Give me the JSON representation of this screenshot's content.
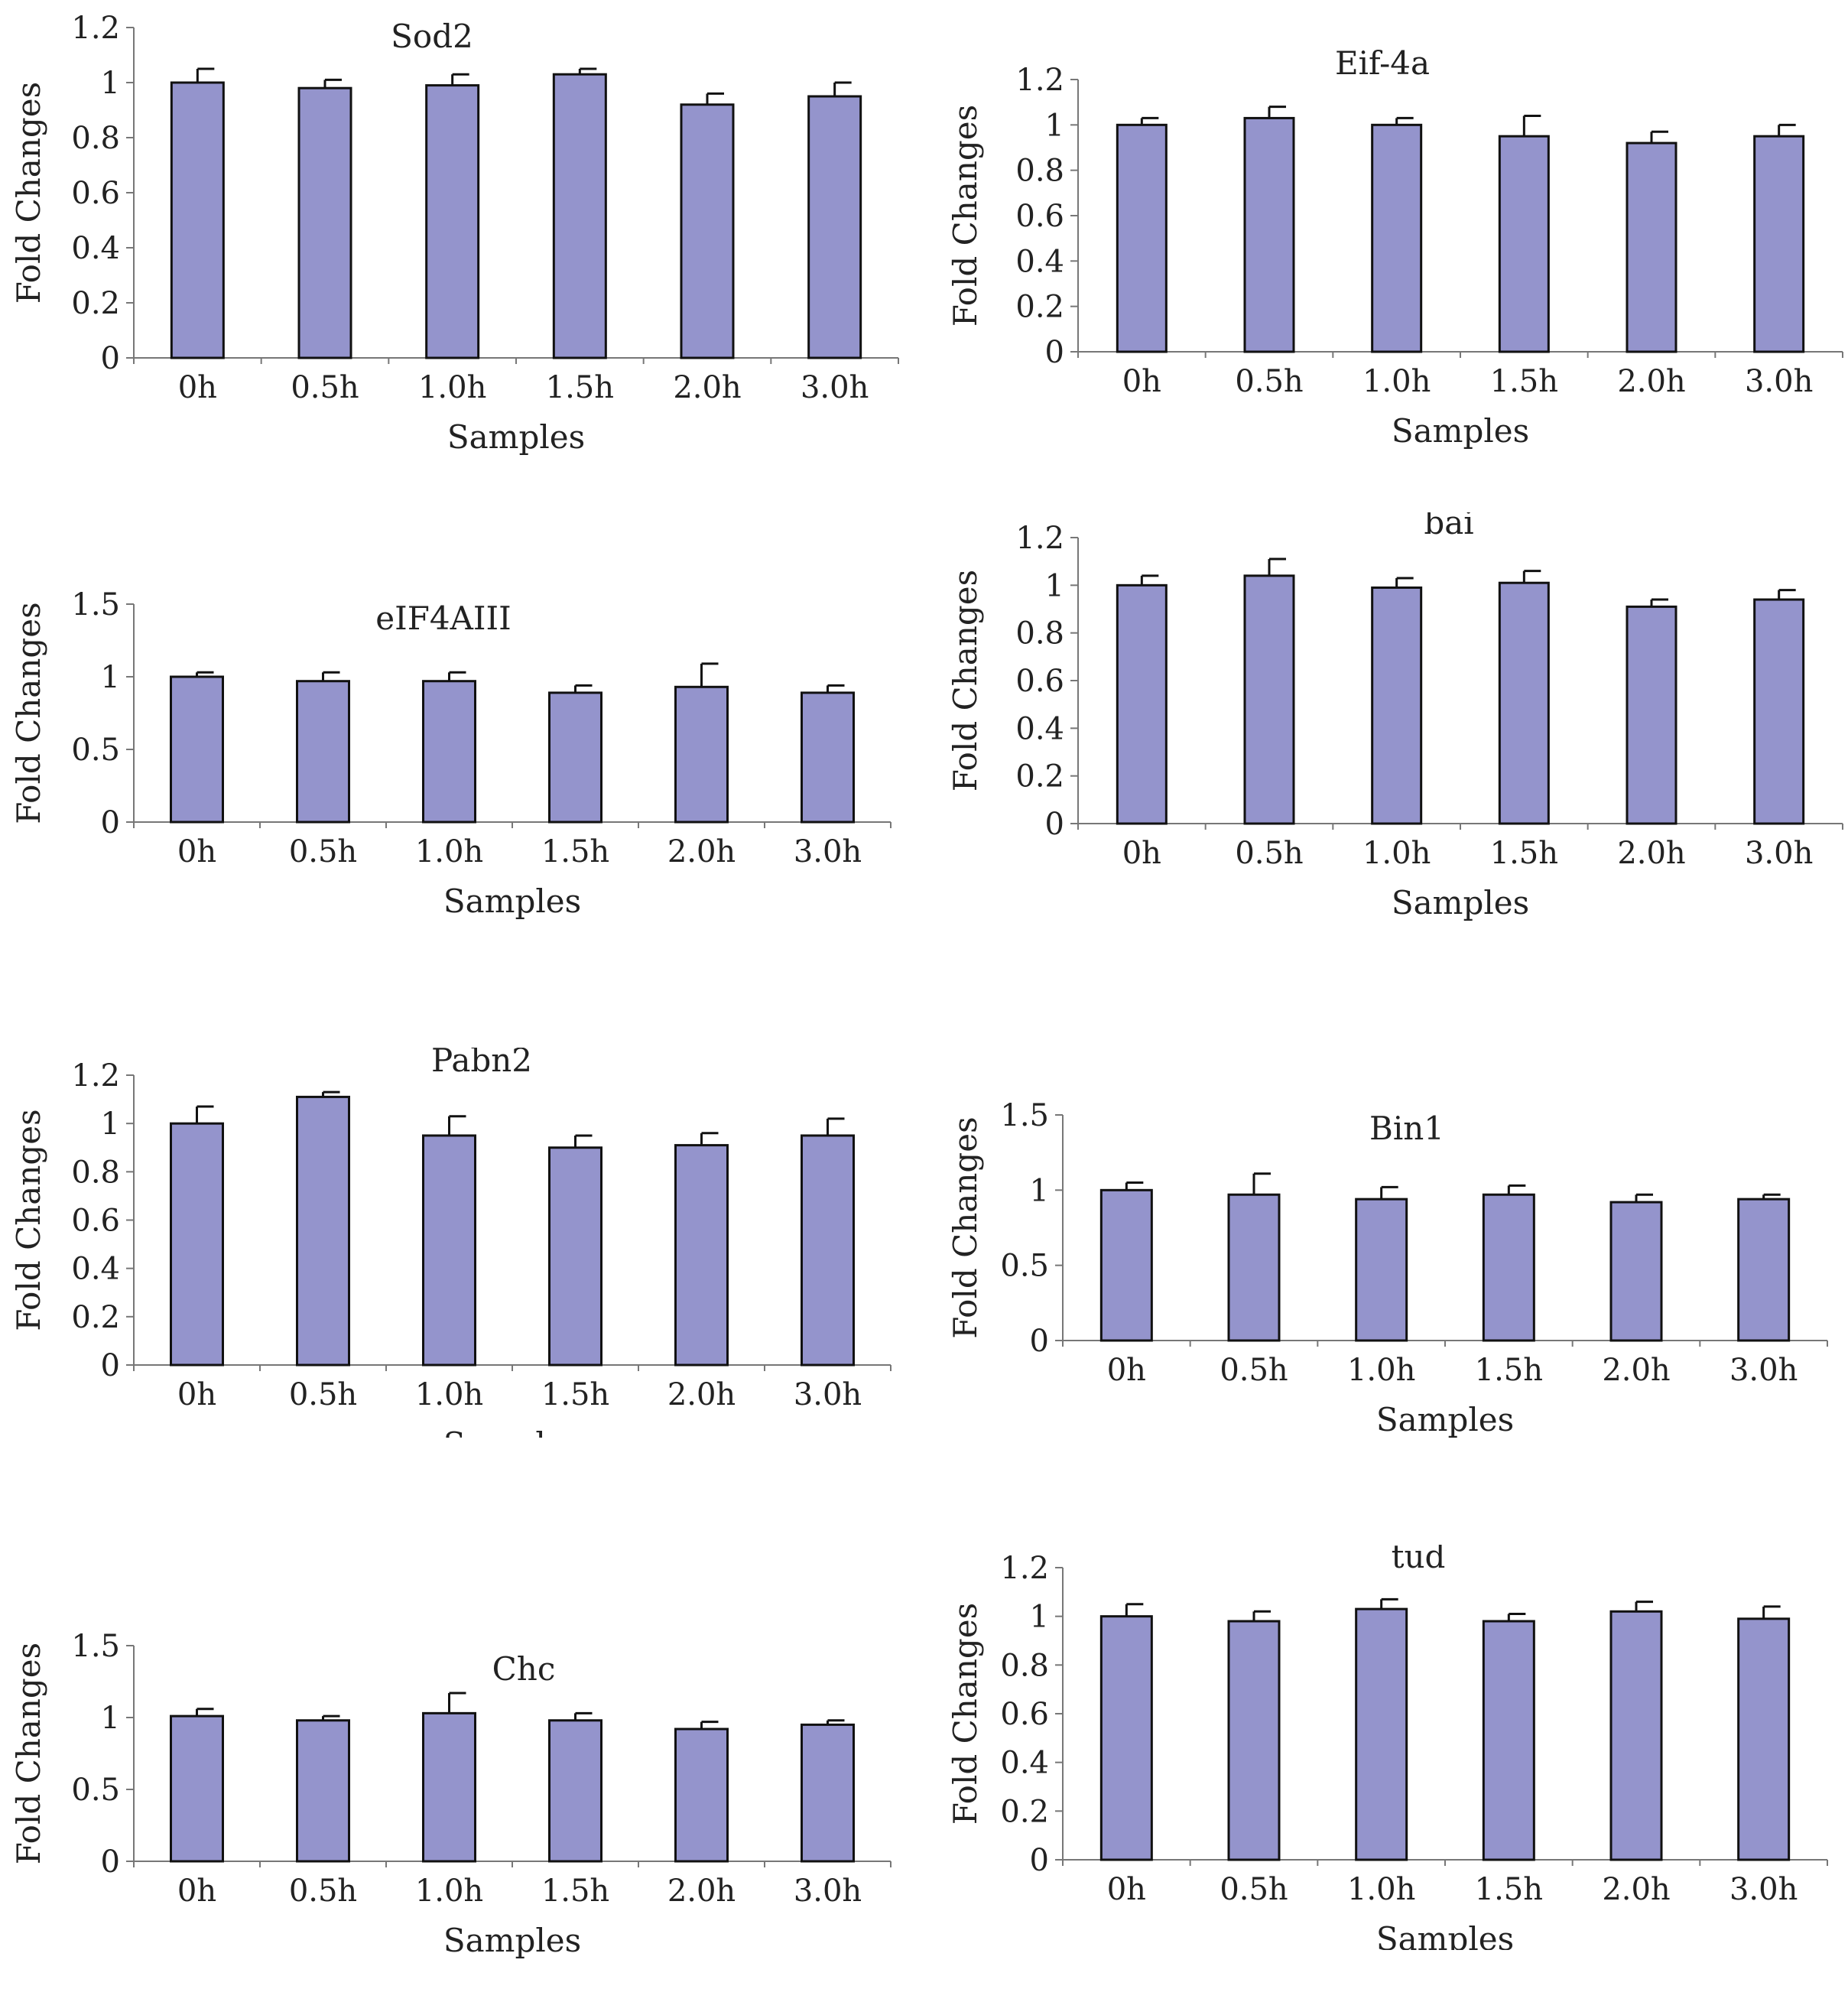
{
  "style": {
    "bar_fill": "#9494cc",
    "bar_stroke": "#111111",
    "axis_color": "#777777",
    "text_color": "#222222"
  },
  "chart_data": [
    {
      "type": "bar",
      "title": "Sod2",
      "xlabel": "Samples",
      "ylabel": "Fold Changes",
      "categories": [
        "0h",
        "0.5h",
        "1.0h",
        "1.5h",
        "2.0h",
        "3.0h"
      ],
      "values": [
        1.0,
        0.98,
        0.99,
        1.03,
        0.92,
        0.95
      ],
      "errors": [
        0.05,
        0.03,
        0.04,
        0.02,
        0.04,
        0.05
      ],
      "ylim": [
        0,
        1.2
      ],
      "yticks": [
        "0",
        "0.2",
        "0.4",
        "0.6",
        "0.8",
        "1",
        "1.2"
      ],
      "grid": false
    },
    {
      "type": "bar",
      "title": "Eif-4a",
      "xlabel": "Samples",
      "ylabel": "Fold Changes",
      "categories": [
        "0h",
        "0.5h",
        "1.0h",
        "1.5h",
        "2.0h",
        "3.0h"
      ],
      "values": [
        1.0,
        1.03,
        1.0,
        0.95,
        0.92,
        0.95
      ],
      "errors": [
        0.03,
        0.05,
        0.03,
        0.09,
        0.05,
        0.05
      ],
      "ylim": [
        0,
        1.2
      ],
      "yticks": [
        "0",
        "0.2",
        "0.4",
        "0.6",
        "0.8",
        "1",
        "1.2"
      ],
      "grid": false
    },
    {
      "type": "bar",
      "title": "eIF4AIII",
      "xlabel": "Samples",
      "ylabel": "Fold Changes",
      "categories": [
        "0h",
        "0.5h",
        "1.0h",
        "1.5h",
        "2.0h",
        "3.0h"
      ],
      "values": [
        1.0,
        0.97,
        0.97,
        0.89,
        0.93,
        0.89
      ],
      "errors": [
        0.03,
        0.06,
        0.06,
        0.05,
        0.16,
        0.05
      ],
      "ylim": [
        0,
        1.5
      ],
      "yticks": [
        "0",
        "0.5",
        "1",
        "1.5"
      ],
      "grid": false
    },
    {
      "type": "bar",
      "title": "bai",
      "xlabel": "Samples",
      "ylabel": "Fold Changes",
      "categories": [
        "0h",
        "0.5h",
        "1.0h",
        "1.5h",
        "2.0h",
        "3.0h"
      ],
      "values": [
        1.0,
        1.04,
        0.99,
        1.01,
        0.91,
        0.94
      ],
      "errors": [
        0.04,
        0.07,
        0.04,
        0.05,
        0.03,
        0.04
      ],
      "ylim": [
        0,
        1.2
      ],
      "yticks": [
        "0",
        "0.2",
        "0.4",
        "0.6",
        "0.8",
        "1",
        "1.2"
      ],
      "grid": false
    },
    {
      "type": "bar",
      "title": "Pabn2",
      "xlabel": "Samples",
      "ylabel": "Fold Changes",
      "categories": [
        "0h",
        "0.5h",
        "1.0h",
        "1.5h",
        "2.0h",
        "3.0h"
      ],
      "values": [
        1.0,
        1.11,
        0.95,
        0.9,
        0.91,
        0.95
      ],
      "errors": [
        0.07,
        0.02,
        0.08,
        0.05,
        0.05,
        0.07
      ],
      "ylim": [
        0,
        1.2
      ],
      "yticks": [
        "0",
        "0.2",
        "0.4",
        "0.6",
        "0.8",
        "1",
        "1.2"
      ],
      "grid": false
    },
    {
      "type": "bar",
      "title": "Bin1",
      "xlabel": "Samples",
      "ylabel": "Fold Changes",
      "categories": [
        "0h",
        "0.5h",
        "1.0h",
        "1.5h",
        "2.0h",
        "3.0h"
      ],
      "values": [
        1.0,
        0.97,
        0.94,
        0.97,
        0.92,
        0.94
      ],
      "errors": [
        0.05,
        0.14,
        0.08,
        0.06,
        0.05,
        0.03
      ],
      "ylim": [
        0,
        1.5
      ],
      "yticks": [
        "0",
        "0.5",
        "1",
        "1.5"
      ],
      "grid": false
    },
    {
      "type": "bar",
      "title": "Chc",
      "xlabel": "Samples",
      "ylabel": "Fold Changes",
      "categories": [
        "0h",
        "0.5h",
        "1.0h",
        "1.5h",
        "2.0h",
        "3.0h"
      ],
      "values": [
        1.01,
        0.98,
        1.03,
        0.98,
        0.92,
        0.95
      ],
      "errors": [
        0.05,
        0.03,
        0.14,
        0.05,
        0.05,
        0.03
      ],
      "ylim": [
        0,
        1.5
      ],
      "yticks": [
        "0",
        "0.5",
        "1",
        "1.5"
      ],
      "grid": false
    },
    {
      "type": "bar",
      "title": "tud",
      "xlabel": "Samples",
      "ylabel": "Fold Changes",
      "categories": [
        "0h",
        "0.5h",
        "1.0h",
        "1.5h",
        "2.0h",
        "3.0h"
      ],
      "values": [
        1.0,
        0.98,
        1.03,
        0.98,
        1.02,
        0.99
      ],
      "errors": [
        0.05,
        0.04,
        0.04,
        0.03,
        0.04,
        0.05
      ],
      "ylim": [
        0,
        1.2
      ],
      "yticks": [
        "0",
        "0.2",
        "0.4",
        "0.6",
        "0.8",
        "1",
        "1.2"
      ],
      "grid": false
    }
  ]
}
